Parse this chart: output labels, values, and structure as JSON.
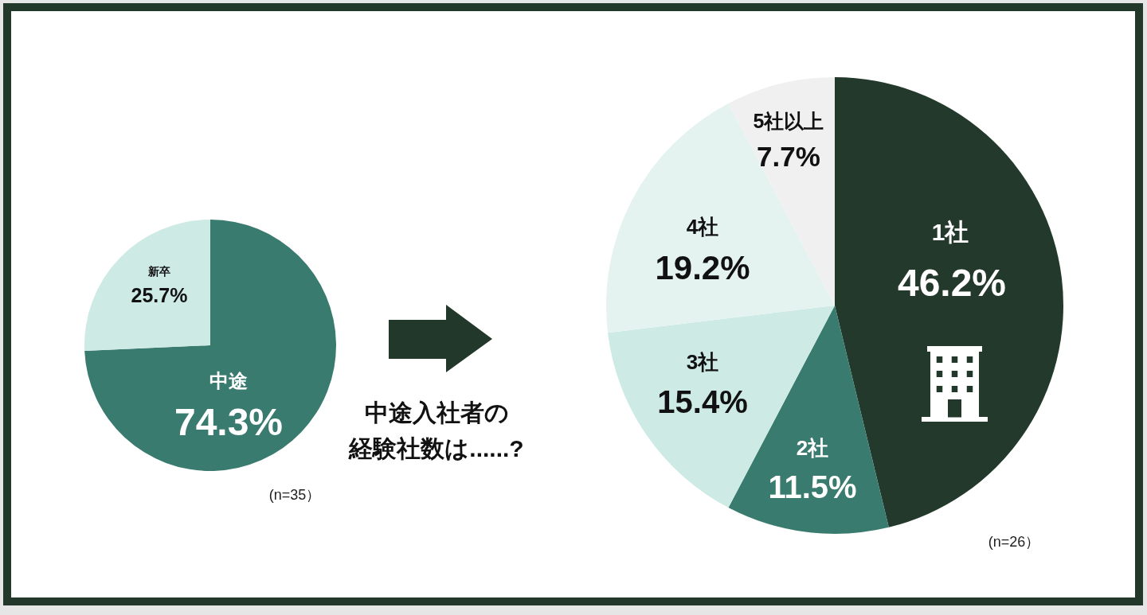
{
  "chart_data": [
    {
      "type": "pie",
      "categories": [
        "中途",
        "新卒"
      ],
      "values": [
        74.3,
        25.7
      ],
      "colors": [
        "#3a7b6f",
        "#cdeae5"
      ],
      "value_labels": [
        "74.3%",
        "25.7%"
      ],
      "annotations": [
        "(n=35）"
      ]
    },
    {
      "type": "pie",
      "title": "中途入社者の経験社数は......?",
      "categories": [
        "1社",
        "2社",
        "3社",
        "4社",
        "5社以上"
      ],
      "values": [
        46.2,
        11.5,
        15.4,
        19.2,
        7.7
      ],
      "colors": [
        "#23392b",
        "#3a7b6f",
        "#cdeae5",
        "#e5f3f0",
        "#f0f0f0"
      ],
      "value_labels": [
        "46.2%",
        "11.5%",
        "15.4%",
        "19.2%",
        "7.7%"
      ],
      "annotations": [
        "(n=26）"
      ]
    }
  ]
}
